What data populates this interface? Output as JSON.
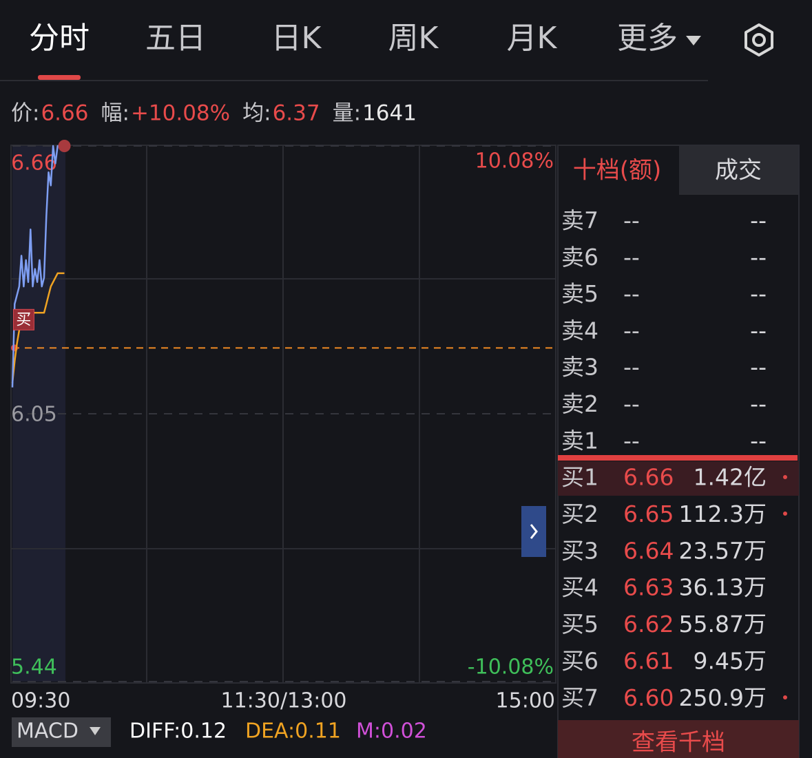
{
  "tabs": {
    "items": [
      "分时",
      "五日",
      "日K",
      "周K",
      "月K",
      "更多"
    ]
  },
  "quote": {
    "price_label": "价:",
    "price": "6.66",
    "change_label": "幅:",
    "change": "+10.08%",
    "avg_label": "均:",
    "avg": "6.37",
    "volume_label": "量:",
    "volume": "1641"
  },
  "chart_data": {
    "type": "line",
    "x": [
      0,
      1,
      2,
      3,
      4,
      5,
      6,
      7,
      8,
      9,
      10,
      11,
      12,
      13,
      14,
      15,
      16,
      17,
      18,
      19,
      20,
      21,
      22,
      23
    ],
    "series": [
      {
        "color": "#7e9ef2",
        "values": [
          6.11,
          6.3,
          6.32,
          6.34,
          6.41,
          6.34,
          6.4,
          6.35,
          6.47,
          6.34,
          6.38,
          6.35,
          6.4,
          6.34,
          6.36,
          6.5,
          6.6,
          6.57,
          6.66,
          6.62,
          6.66,
          6.66,
          6.66,
          6.66
        ]
      },
      {
        "color": "#f0a322",
        "values": [
          6.12,
          6.17,
          6.21,
          6.24,
          6.27,
          6.28,
          6.28,
          6.28,
          6.28,
          6.28,
          6.28,
          6.28,
          6.28,
          6.28,
          6.28,
          6.3,
          6.32,
          6.34,
          6.35,
          6.36,
          6.37,
          6.37,
          6.37,
          6.37
        ]
      }
    ],
    "xlim": [
      0,
      240
    ],
    "xticks": [
      {
        "value": 0,
        "label": "09:30"
      },
      {
        "value": 120,
        "label": "11:30/13:00"
      },
      {
        "value": 240,
        "label": "15:00"
      }
    ],
    "ylim": [
      5.44,
      6.66
    ],
    "yticks": [
      6.66,
      6.05,
      5.44
    ],
    "y2lim": [
      -10.08,
      10.08
    ],
    "y2ticks": [
      {
        "value": 10.08,
        "label": "10.08%"
      },
      {
        "value": -10.08,
        "label": "-10.08%"
      }
    ],
    "reference_line": 6.2,
    "buy_marker": {
      "label": "买",
      "x": 5,
      "y": 6.28
    }
  },
  "order_book": {
    "tabs": [
      "十档(额)",
      "成交"
    ],
    "asks": [
      {
        "label": "卖7",
        "price": "--",
        "amount": "--"
      },
      {
        "label": "卖6",
        "price": "--",
        "amount": "--"
      },
      {
        "label": "卖5",
        "price": "--",
        "amount": "--"
      },
      {
        "label": "卖4",
        "price": "--",
        "amount": "--"
      },
      {
        "label": "卖3",
        "price": "--",
        "amount": "--"
      },
      {
        "label": "卖2",
        "price": "--",
        "amount": "--"
      },
      {
        "label": "卖1",
        "price": "--",
        "amount": "--"
      }
    ],
    "bids": [
      {
        "label": "买1",
        "price": "6.66",
        "amount": "1.42亿"
      },
      {
        "label": "买2",
        "price": "6.65",
        "amount": "112.3万"
      },
      {
        "label": "买3",
        "price": "6.64",
        "amount": "23.57万"
      },
      {
        "label": "买4",
        "price": "6.63",
        "amount": "36.13万"
      },
      {
        "label": "买5",
        "price": "6.62",
        "amount": "55.87万"
      },
      {
        "label": "买6",
        "price": "6.61",
        "amount": "9.45万"
      },
      {
        "label": "买7",
        "price": "6.60",
        "amount": "250.9万"
      }
    ],
    "button": "查看千档"
  },
  "macd": {
    "selector": "MACD",
    "diff": "DIFF:0.12",
    "dea": "DEA:0.11",
    "m": "M:0.02"
  }
}
